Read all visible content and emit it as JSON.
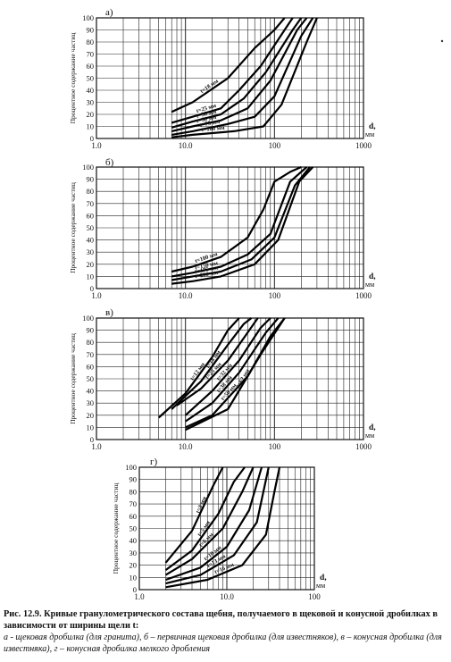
{
  "chart_data": [
    {
      "type": "line",
      "panel_label": "а)",
      "x_scale": "log",
      "xlim": [
        1,
        1000
      ],
      "ylim": [
        0,
        100
      ],
      "x_tick_labels": [
        "1.0",
        "10.0",
        "100",
        "1000"
      ],
      "y_ticks": [
        0,
        10,
        20,
        30,
        40,
        50,
        60,
        70,
        80,
        90,
        100
      ],
      "ylabel": "Процентное содержание частиц",
      "xlabel": "d,\nмм",
      "grid": true,
      "series": [
        {
          "name": "t=18 мм",
          "points": [
            [
              7,
              22
            ],
            [
              12,
              30
            ],
            [
              30,
              50
            ],
            [
              60,
              75
            ],
            [
              100,
              90
            ],
            [
              130,
              100
            ]
          ]
        },
        {
          "name": "t=25 мм",
          "points": [
            [
              7,
              13
            ],
            [
              12,
              18
            ],
            [
              25,
              25
            ],
            [
              40,
              40
            ],
            [
              70,
              60
            ],
            [
              130,
              90
            ],
            [
              160,
              100
            ]
          ]
        },
        {
          "name": "t=38 мм",
          "points": [
            [
              7,
              9
            ],
            [
              12,
              14
            ],
            [
              25,
              20
            ],
            [
              45,
              33
            ],
            [
              80,
              55
            ],
            [
              160,
              90
            ],
            [
              200,
              100
            ]
          ]
        },
        {
          "name": "t=50 мм",
          "points": [
            [
              7,
              6
            ],
            [
              12,
              10
            ],
            [
              25,
              15
            ],
            [
              50,
              25
            ],
            [
              90,
              48
            ],
            [
              180,
              90
            ],
            [
              230,
              100
            ]
          ]
        },
        {
          "name": "t=75 мм",
          "points": [
            [
              7,
              3
            ],
            [
              12,
              6
            ],
            [
              30,
              12
            ],
            [
              60,
              18
            ],
            [
              100,
              35
            ],
            [
              200,
              85
            ],
            [
              270,
              100
            ]
          ]
        },
        {
          "name": "t=100 мм",
          "points": [
            [
              7,
              1
            ],
            [
              12,
              3
            ],
            [
              35,
              6
            ],
            [
              75,
              10
            ],
            [
              120,
              28
            ],
            [
              230,
              80
            ],
            [
              300,
              100
            ]
          ]
        }
      ]
    },
    {
      "type": "line",
      "panel_label": "б)",
      "x_scale": "log",
      "xlim": [
        1,
        1000
      ],
      "ylim": [
        0,
        100
      ],
      "x_tick_labels": [
        "1.0",
        "10.0",
        "100",
        "1000"
      ],
      "y_ticks": [
        0,
        10,
        20,
        30,
        40,
        50,
        60,
        70,
        80,
        90,
        100
      ],
      "ylabel": "Процентное содержание частиц",
      "xlabel": "d,\nмм",
      "grid": true,
      "series": [
        {
          "name": "t=100 мм",
          "points": [
            [
              7,
              14
            ],
            [
              12,
              18
            ],
            [
              25,
              26
            ],
            [
              50,
              42
            ],
            [
              75,
              65
            ],
            [
              100,
              88
            ],
            [
              150,
              96
            ],
            [
              200,
              100
            ]
          ]
        },
        {
          "name": "t=150 мм",
          "points": [
            [
              7,
              10
            ],
            [
              12,
              13
            ],
            [
              25,
              18
            ],
            [
              50,
              28
            ],
            [
              90,
              45
            ],
            [
              150,
              88
            ],
            [
              230,
              100
            ]
          ]
        },
        {
          "name": "t=175 мм",
          "points": [
            [
              7,
              7
            ],
            [
              12,
              10
            ],
            [
              25,
              14
            ],
            [
              55,
              24
            ],
            [
              100,
              42
            ],
            [
              170,
              85
            ],
            [
              250,
              100
            ]
          ]
        },
        {
          "name": "t=200 мм",
          "points": [
            [
              7,
              4
            ],
            [
              12,
              6
            ],
            [
              25,
              10
            ],
            [
              60,
              20
            ],
            [
              110,
              40
            ],
            [
              190,
              88
            ],
            [
              270,
              100
            ]
          ]
        }
      ]
    },
    {
      "type": "line",
      "panel_label": "в)",
      "x_scale": "log",
      "xlim": [
        1,
        1000
      ],
      "ylim": [
        0,
        100
      ],
      "x_tick_labels": [
        "1.0",
        "10.0",
        "100",
        "1000"
      ],
      "y_ticks": [
        0,
        10,
        20,
        30,
        40,
        50,
        60,
        70,
        80,
        90,
        100
      ],
      "ylabel": "Процентное содержание частиц",
      "xlabel": "d,\nмм",
      "grid": true,
      "series": [
        {
          "name": "t=12 мм",
          "points": [
            [
              5,
              18
            ],
            [
              10,
              38
            ],
            [
              20,
              68
            ],
            [
              30,
              90
            ],
            [
              40,
              100
            ]
          ]
        },
        {
          "name": "t=18 мм",
          "points": [
            [
              7,
              25
            ],
            [
              15,
              48
            ],
            [
              30,
              78
            ],
            [
              45,
              95
            ],
            [
              55,
              100
            ]
          ]
        },
        {
          "name": "t=25 мм",
          "points": [
            [
              8,
              28
            ],
            [
              15,
              42
            ],
            [
              30,
              65
            ],
            [
              50,
              88
            ],
            [
              65,
              100
            ]
          ]
        },
        {
          "name": "t=32 мм",
          "points": [
            [
              10,
              20
            ],
            [
              20,
              40
            ],
            [
              40,
              65
            ],
            [
              70,
              92
            ],
            [
              90,
              100
            ]
          ]
        },
        {
          "name": "t=38 мм",
          "points": [
            [
              10,
              15
            ],
            [
              20,
              30
            ],
            [
              40,
              55
            ],
            [
              80,
              88
            ],
            [
              110,
              100
            ]
          ]
        },
        {
          "name": "t=50 мм",
          "points": [
            [
              10,
              10
            ],
            [
              20,
              20
            ],
            [
              50,
              52
            ],
            [
              90,
              85
            ],
            [
              130,
              100
            ]
          ]
        },
        {
          "name": "t=62 мм",
          "points": [
            [
              10,
              8
            ],
            [
              30,
              25
            ],
            [
              70,
              70
            ],
            [
              130,
              100
            ]
          ]
        }
      ]
    },
    {
      "type": "line",
      "panel_label": "г)",
      "x_scale": "log",
      "xlim": [
        1,
        100
      ],
      "ylim": [
        0,
        100
      ],
      "x_tick_labels": [
        "1.0",
        "10.0",
        "100"
      ],
      "y_ticks": [
        0,
        10,
        20,
        30,
        40,
        50,
        60,
        70,
        80,
        90,
        100
      ],
      "ylabel": "Процентное содержание частиц",
      "xlabel": "d,\nмм",
      "grid": true,
      "series": [
        {
          "name": "t=3 мм",
          "points": [
            [
              2,
              22
            ],
            [
              4,
              48
            ],
            [
              7,
              85
            ],
            [
              9,
              100
            ]
          ]
        },
        {
          "name": "t=5 мм",
          "points": [
            [
              2,
              16
            ],
            [
              4,
              32
            ],
            [
              8,
              62
            ],
            [
              12,
              88
            ],
            [
              16,
              100
            ]
          ]
        },
        {
          "name": "t=6 мм",
          "points": [
            [
              2,
              12
            ],
            [
              4,
              25
            ],
            [
              9,
              50
            ],
            [
              15,
              80
            ],
            [
              20,
              100
            ]
          ]
        },
        {
          "name": "t=10 мм",
          "points": [
            [
              2,
              8
            ],
            [
              5,
              18
            ],
            [
              10,
              35
            ],
            [
              18,
              65
            ],
            [
              25,
              100
            ]
          ]
        },
        {
          "name": "t=13 мм",
          "points": [
            [
              2,
              5
            ],
            [
              5,
              12
            ],
            [
              12,
              28
            ],
            [
              22,
              55
            ],
            [
              30,
              100
            ]
          ]
        },
        {
          "name": "t=16 мм",
          "points": [
            [
              2,
              2
            ],
            [
              6,
              8
            ],
            [
              15,
              20
            ],
            [
              28,
              45
            ],
            [
              35,
              80
            ],
            [
              40,
              100
            ]
          ]
        }
      ]
    }
  ],
  "caption": {
    "title": "Рис. 12.9. Кривые гранулометрического состава щебня, получаемого в щековой и конусной дробилках в зависимости от ширины щели t:",
    "desc": "а - щековая дробилка (для гранита), б – первичная щековая дробилка (для известняков), в – конусная дробилка (для известняка), г – конусная дробилка мелкого дробления"
  }
}
